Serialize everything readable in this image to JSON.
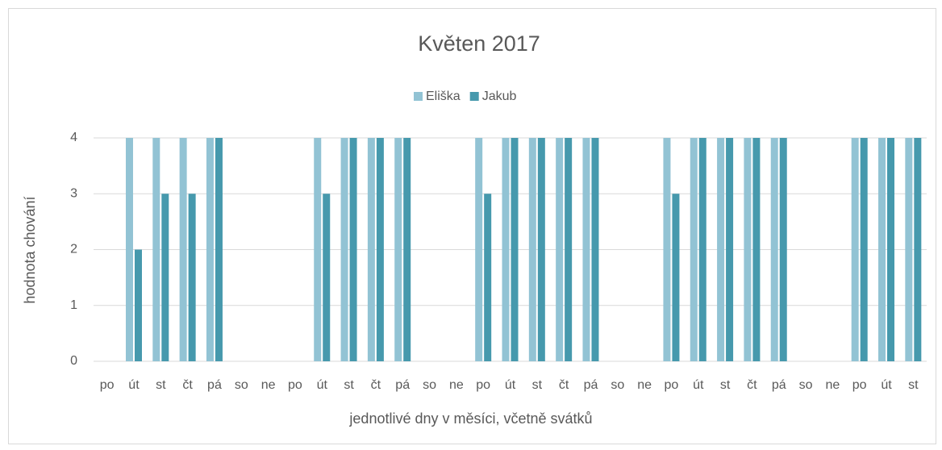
{
  "chart_data": {
    "type": "bar",
    "title": "Květen 2017",
    "x_label": "jednotlivé dny v měsíci, včetně svátků",
    "y_label": "hodnota chování",
    "categories": [
      "po",
      "út",
      "st",
      "čt",
      "pá",
      "so",
      "ne",
      "po",
      "út",
      "st",
      "čt",
      "pá",
      "so",
      "ne",
      "po",
      "út",
      "st",
      "čt",
      "pá",
      "so",
      "ne",
      "po",
      "út",
      "st",
      "čt",
      "pá",
      "so",
      "ne",
      "po",
      "út",
      "st"
    ],
    "series": [
      {
        "name": "Eliška",
        "color": "#92c3d4",
        "values": [
          null,
          4,
          4,
          4,
          4,
          null,
          null,
          null,
          4,
          4,
          4,
          4,
          null,
          null,
          4,
          4,
          4,
          4,
          4,
          null,
          null,
          4,
          4,
          4,
          4,
          4,
          null,
          null,
          4,
          4,
          4
        ]
      },
      {
        "name": "Jakub",
        "color": "#4699ad",
        "values": [
          null,
          2,
          3,
          3,
          4,
          null,
          null,
          null,
          3,
          4,
          4,
          4,
          null,
          null,
          3,
          4,
          4,
          4,
          4,
          null,
          null,
          3,
          4,
          4,
          4,
          4,
          null,
          null,
          4,
          4,
          4
        ]
      }
    ],
    "ylim": [
      0,
      4
    ],
    "yticks": [
      0,
      1,
      2,
      3,
      4
    ],
    "grid": true,
    "legend": "top"
  }
}
